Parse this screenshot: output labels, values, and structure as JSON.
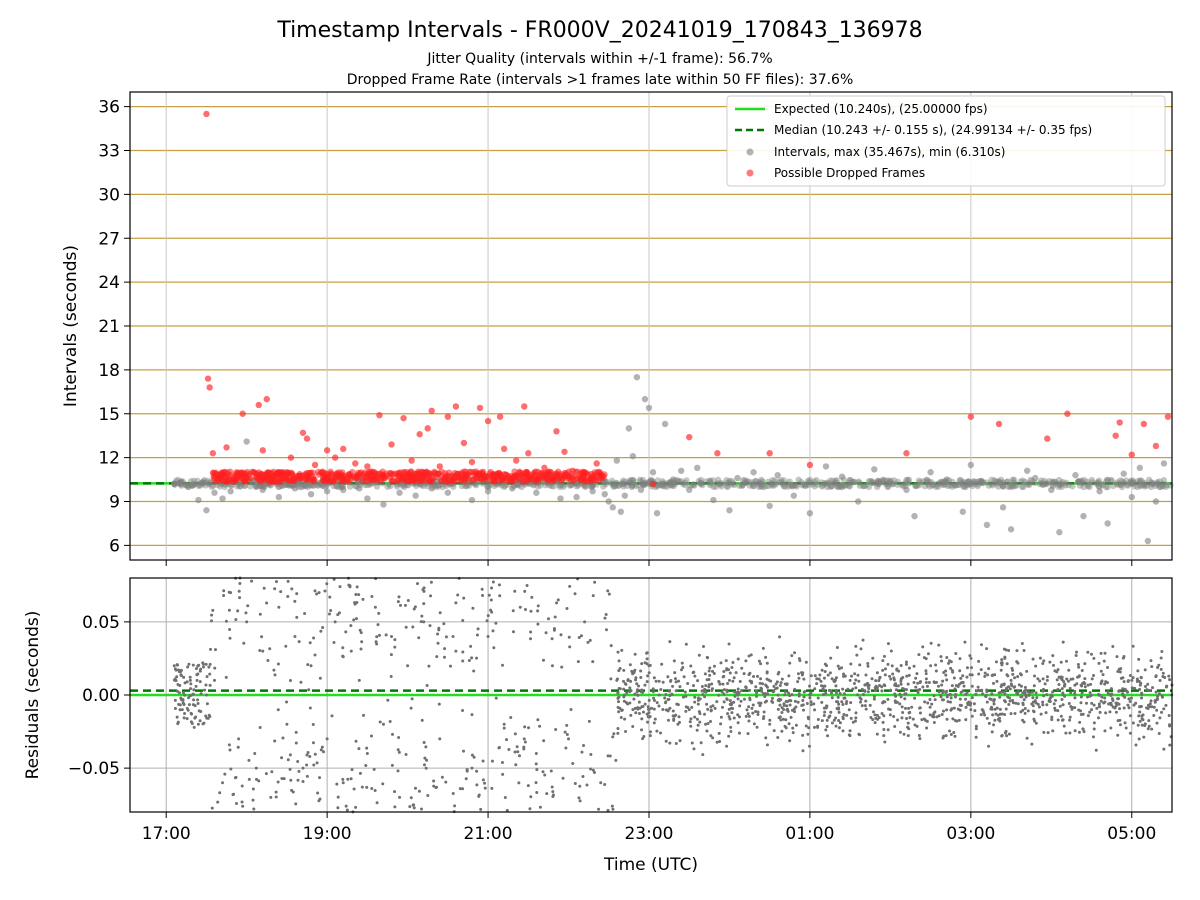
{
  "title": "Timestamp Intervals - FR000V_20241019_170843_136978",
  "subtitles": [
    "Jitter Quality (intervals within +/-1 frame): 56.7%",
    "Dropped Frame Rate (intervals >1 frames late within 50 FF files): 37.6%"
  ],
  "colors": {
    "expected": "#22dd22",
    "median": "#007700",
    "intervals": "#808080",
    "dropped": "#ff2020",
    "grid_top": "#c8a040",
    "grid_bottom": "#b0b0b0"
  },
  "chart_data": [
    {
      "type": "scatter",
      "panel": "top",
      "ylabel": "Intervals (seconds)",
      "ylim": [
        5.0,
        37.0
      ],
      "y_ticks": [
        6,
        9,
        12,
        15,
        18,
        21,
        24,
        27,
        30,
        33,
        36
      ],
      "x_range_hours": [
        16.55,
        29.5
      ],
      "x_ticks": [
        {
          "hour": 17,
          "label": "17:00"
        },
        {
          "hour": 19,
          "label": "19:00"
        },
        {
          "hour": 21,
          "label": "21:00"
        },
        {
          "hour": 23,
          "label": "23:00"
        },
        {
          "hour": 25,
          "label": "01:00"
        },
        {
          "hour": 27,
          "label": "03:00"
        },
        {
          "hour": 29,
          "label": "05:00"
        }
      ],
      "grid": "horizontal",
      "legend_position": "top-right",
      "legend": [
        {
          "kind": "line-solid",
          "label": "Expected (10.240s), (25.00000 fps)"
        },
        {
          "kind": "line-dashed",
          "label": "Median (10.243 +/- 0.155 s), (24.99134 +/- 0.35 fps)"
        },
        {
          "kind": "marker-gray",
          "label": "Intervals, max (35.467s), min (6.310s)"
        },
        {
          "kind": "marker-red",
          "label": "Possible Dropped Frames"
        }
      ],
      "expected_value": 10.24,
      "median_value": 10.243,
      "expected_x_start": 16.55,
      "median_x_start": 16.55,
      "series": [
        {
          "name": "Intervals",
          "points": [
            [
              17.1,
              10.2
            ],
            [
              17.25,
              10.1
            ],
            [
              17.4,
              9.1
            ],
            [
              17.5,
              8.4
            ],
            [
              17.6,
              9.6
            ],
            [
              17.7,
              9.2
            ],
            [
              17.8,
              9.7
            ],
            [
              17.9,
              10.9
            ],
            [
              18.0,
              13.1
            ],
            [
              18.2,
              9.8
            ],
            [
              18.4,
              9.3
            ],
            [
              18.6,
              9.9
            ],
            [
              18.8,
              9.5
            ],
            [
              19.0,
              9.7
            ],
            [
              19.2,
              9.8
            ],
            [
              19.4,
              9.9
            ],
            [
              19.5,
              9.2
            ],
            [
              19.7,
              8.8
            ],
            [
              19.9,
              9.6
            ],
            [
              20.1,
              9.4
            ],
            [
              20.3,
              9.9
            ],
            [
              20.5,
              9.6
            ],
            [
              20.8,
              9.1
            ],
            [
              21.0,
              9.7
            ],
            [
              21.3,
              9.9
            ],
            [
              21.6,
              9.6
            ],
            [
              21.9,
              9.2
            ],
            [
              22.1,
              9.3
            ],
            [
              22.3,
              9.7
            ],
            [
              22.45,
              9.5
            ],
            [
              22.5,
              9.0
            ],
            [
              22.55,
              8.6
            ],
            [
              22.6,
              11.8
            ],
            [
              22.65,
              8.3
            ],
            [
              22.7,
              9.4
            ],
            [
              22.75,
              14.0
            ],
            [
              22.8,
              12.1
            ],
            [
              22.85,
              17.5
            ],
            [
              22.9,
              9.8
            ],
            [
              22.95,
              16.0
            ],
            [
              23.0,
              15.4
            ],
            [
              23.05,
              11.0
            ],
            [
              23.1,
              8.2
            ],
            [
              23.2,
              14.3
            ],
            [
              23.3,
              10.5
            ],
            [
              23.4,
              11.1
            ],
            [
              23.5,
              9.8
            ],
            [
              23.6,
              11.3
            ],
            [
              23.8,
              9.1
            ],
            [
              24.0,
              8.4
            ],
            [
              24.1,
              10.6
            ],
            [
              24.3,
              11.0
            ],
            [
              24.5,
              8.7
            ],
            [
              24.6,
              10.8
            ],
            [
              24.8,
              9.4
            ],
            [
              25.0,
              8.2
            ],
            [
              25.2,
              11.4
            ],
            [
              25.4,
              10.7
            ],
            [
              25.6,
              9.0
            ],
            [
              25.8,
              11.2
            ],
            [
              26.0,
              10.4
            ],
            [
              26.2,
              9.8
            ],
            [
              26.3,
              8.0
            ],
            [
              26.5,
              11.0
            ],
            [
              26.7,
              10.5
            ],
            [
              26.9,
              8.3
            ],
            [
              27.0,
              11.5
            ],
            [
              27.2,
              7.4
            ],
            [
              27.4,
              8.6
            ],
            [
              27.5,
              7.1
            ],
            [
              27.7,
              11.1
            ],
            [
              27.8,
              10.6
            ],
            [
              28.0,
              9.8
            ],
            [
              28.1,
              6.9
            ],
            [
              28.3,
              10.8
            ],
            [
              28.4,
              8.0
            ],
            [
              28.6,
              9.7
            ],
            [
              28.7,
              7.5
            ],
            [
              28.9,
              10.9
            ],
            [
              29.0,
              9.3
            ],
            [
              29.1,
              11.3
            ],
            [
              29.2,
              6.3
            ],
            [
              29.3,
              9.0
            ],
            [
              29.4,
              11.6
            ]
          ]
        },
        {
          "name": "Possible Dropped Frames",
          "points": [
            [
              17.5,
              35.5
            ],
            [
              17.52,
              17.4
            ],
            [
              17.54,
              16.8
            ],
            [
              17.58,
              12.3
            ],
            [
              17.75,
              12.7
            ],
            [
              17.95,
              15.0
            ],
            [
              18.15,
              15.6
            ],
            [
              18.25,
              16.0
            ],
            [
              18.2,
              12.5
            ],
            [
              18.4,
              11.0
            ],
            [
              18.55,
              12.0
            ],
            [
              18.7,
              13.7
            ],
            [
              18.75,
              13.3
            ],
            [
              18.85,
              11.5
            ],
            [
              19.0,
              12.5
            ],
            [
              19.1,
              12.0
            ],
            [
              19.2,
              12.6
            ],
            [
              19.35,
              11.6
            ],
            [
              19.5,
              11.4
            ],
            [
              19.65,
              14.9
            ],
            [
              19.8,
              12.9
            ],
            [
              19.95,
              14.7
            ],
            [
              20.05,
              11.8
            ],
            [
              20.15,
              13.6
            ],
            [
              20.25,
              14.0
            ],
            [
              20.3,
              15.2
            ],
            [
              20.4,
              11.4
            ],
            [
              20.5,
              14.8
            ],
            [
              20.6,
              15.5
            ],
            [
              20.7,
              13.0
            ],
            [
              20.8,
              11.7
            ],
            [
              20.9,
              15.4
            ],
            [
              21.0,
              14.5
            ],
            [
              21.15,
              14.8
            ],
            [
              21.2,
              12.6
            ],
            [
              21.35,
              11.8
            ],
            [
              21.45,
              15.5
            ],
            [
              21.5,
              12.3
            ],
            [
              21.7,
              11.3
            ],
            [
              21.85,
              13.8
            ],
            [
              21.95,
              12.4
            ],
            [
              22.05,
              11.1
            ],
            [
              22.2,
              11.0
            ],
            [
              22.35,
              11.6
            ],
            [
              23.05,
              10.2
            ],
            [
              23.5,
              13.4
            ],
            [
              23.85,
              12.3
            ],
            [
              24.5,
              12.3
            ],
            [
              25.0,
              11.5
            ],
            [
              26.2,
              12.3
            ],
            [
              27.0,
              14.8
            ],
            [
              27.35,
              14.3
            ],
            [
              27.95,
              13.3
            ],
            [
              28.2,
              15.0
            ],
            [
              28.8,
              13.5
            ],
            [
              28.85,
              14.4
            ],
            [
              29.0,
              12.2
            ],
            [
              29.15,
              14.3
            ],
            [
              29.3,
              12.8
            ],
            [
              29.45,
              14.8
            ]
          ]
        }
      ]
    },
    {
      "type": "scatter",
      "panel": "bottom",
      "xlabel": "Time (UTC)",
      "ylabel": "Residuals (seconds)",
      "ylim": [
        -0.08,
        0.08
      ],
      "y_ticks": [
        {
          "value": 0.05,
          "label": "0.05"
        },
        {
          "value": 0.0,
          "label": "0.00"
        },
        {
          "value": -0.05,
          "label": "−0.05"
        }
      ],
      "x_range_hours": [
        16.55,
        29.5
      ],
      "grid": "both",
      "expected_residual": 0.0,
      "median_residual": 0.003,
      "series": [
        {
          "name": "Residuals",
          "points": [
            [
              17.1,
              0.02
            ],
            [
              17.2,
              -0.01
            ],
            [
              17.3,
              0.01
            ],
            [
              17.4,
              -0.02
            ],
            [
              17.5,
              0.0
            ],
            [
              17.6,
              0.01
            ],
            [
              17.7,
              -0.06
            ],
            [
              17.8,
              0.07
            ],
            [
              17.9,
              -0.03
            ],
            [
              18.0,
              0.05
            ],
            [
              18.1,
              -0.04
            ],
            [
              18.2,
              0.03
            ],
            [
              18.3,
              -0.07
            ],
            [
              18.4,
              0.06
            ],
            [
              18.5,
              -0.02
            ],
            [
              18.6,
              0.04
            ],
            [
              18.7,
              -0.05
            ],
            [
              18.8,
              0.02
            ],
            [
              18.9,
              0.07
            ],
            [
              19.0,
              -0.03
            ],
            [
              19.1,
              0.05
            ],
            [
              19.2,
              -0.06
            ],
            [
              19.3,
              0.03
            ],
            [
              19.4,
              0.01
            ],
            [
              19.5,
              -0.04
            ],
            [
              19.6,
              0.06
            ],
            [
              19.7,
              -0.02
            ],
            [
              19.8,
              0.04
            ],
            [
              19.9,
              -0.07
            ],
            [
              20.0,
              0.02
            ],
            [
              20.2,
              0.05
            ],
            [
              20.4,
              -0.03
            ],
            [
              20.6,
              0.03
            ],
            [
              20.8,
              -0.05
            ],
            [
              21.0,
              0.04
            ],
            [
              21.2,
              -0.02
            ],
            [
              21.4,
              0.06
            ],
            [
              21.6,
              -0.04
            ],
            [
              21.8,
              0.02
            ],
            [
              22.0,
              -0.03
            ],
            [
              22.2,
              0.05
            ],
            [
              22.4,
              -0.06
            ],
            [
              22.6,
              0.01
            ],
            [
              22.8,
              -0.01
            ],
            [
              23.0,
              0.02
            ],
            [
              23.5,
              -0.01
            ],
            [
              24.0,
              0.01
            ],
            [
              24.5,
              -0.02
            ],
            [
              25.0,
              0.0
            ],
            [
              25.5,
              0.01
            ],
            [
              26.0,
              -0.01
            ],
            [
              26.5,
              0.02
            ],
            [
              27.0,
              -0.01
            ],
            [
              27.5,
              0.01
            ],
            [
              28.0,
              0.0
            ],
            [
              28.5,
              -0.01
            ],
            [
              29.0,
              0.01
            ]
          ]
        }
      ]
    }
  ]
}
